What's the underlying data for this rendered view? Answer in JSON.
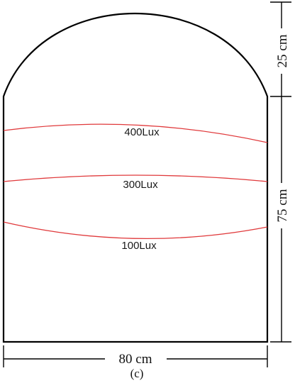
{
  "figure": {
    "caption": "(c)"
  },
  "dimensions": {
    "width": "80 cm",
    "height_body": "75 cm",
    "height_arch": "25 cm"
  },
  "isolines": [
    {
      "label": "400Lux",
      "color": "#e0393b"
    },
    {
      "label": "300Lux",
      "color": "#e0393b"
    },
    {
      "label": "100Lux",
      "color": "#e0393b"
    }
  ],
  "colors": {
    "outline": "#000000",
    "isoline": "#e0393b"
  }
}
